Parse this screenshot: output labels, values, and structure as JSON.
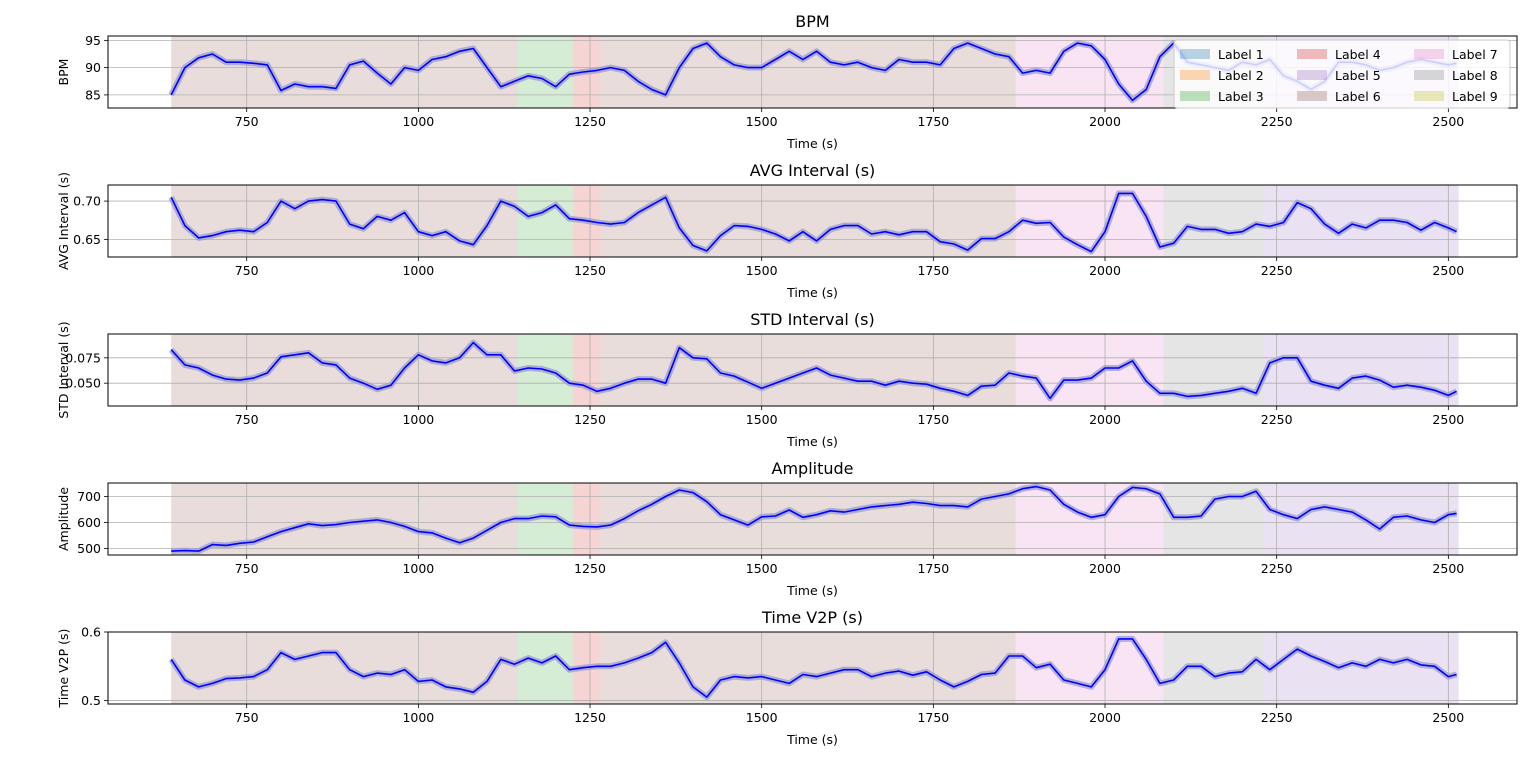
{
  "chart_data": [
    {
      "type": "line",
      "title": "BPM",
      "xlabel": "Time (s)",
      "ylabel": "BPM",
      "xlim": [
        548,
        2600
      ],
      "ylim": [
        82.6,
        95.8
      ],
      "xticks": [
        750,
        1000,
        1250,
        1500,
        1750,
        2000,
        2250,
        2500
      ],
      "yticks": [
        85,
        90,
        95
      ],
      "grid": true,
      "legend": "top-right",
      "x": [
        640,
        660,
        680,
        700,
        720,
        740,
        760,
        780,
        800,
        820,
        840,
        860,
        880,
        900,
        920,
        940,
        960,
        980,
        1000,
        1020,
        1040,
        1060,
        1080,
        1100,
        1120,
        1140,
        1160,
        1180,
        1200,
        1220,
        1240,
        1260,
        1280,
        1300,
        1320,
        1340,
        1360,
        1380,
        1400,
        1420,
        1440,
        1460,
        1480,
        1500,
        1520,
        1540,
        1560,
        1580,
        1600,
        1620,
        1640,
        1660,
        1680,
        1700,
        1720,
        1740,
        1760,
        1780,
        1800,
        1820,
        1840,
        1860,
        1880,
        1900,
        1920,
        1940,
        1960,
        1980,
        2000,
        2020,
        2040,
        2060,
        2080,
        2100,
        2120,
        2140,
        2160,
        2180,
        2200,
        2220,
        2240,
        2260,
        2280,
        2300,
        2320,
        2340,
        2360,
        2380,
        2400,
        2420,
        2440,
        2460,
        2480,
        2500,
        2512
      ],
      "series": [
        {
          "values": [
            85.0,
            90.0,
            91.8,
            92.5,
            91.0,
            91.0,
            90.8,
            90.5,
            85.8,
            87.0,
            86.5,
            86.5,
            86.2,
            90.5,
            91.2,
            89.0,
            87.0,
            90.0,
            89.5,
            91.5,
            92.0,
            93.0,
            93.5,
            90.0,
            86.5,
            87.5,
            88.5,
            88.0,
            86.5,
            88.8,
            89.2,
            89.5,
            90.0,
            89.5,
            87.5,
            86.0,
            85.0,
            90.0,
            93.5,
            94.5,
            92.0,
            90.5,
            90.0,
            90.0,
            91.5,
            93.0,
            91.5,
            93.0,
            91.0,
            90.5,
            91.0,
            90.0,
            89.5,
            91.5,
            91.0,
            91.0,
            90.5,
            93.5,
            94.5,
            93.5,
            92.5,
            92.0,
            89.0,
            89.5,
            89.0,
            93.0,
            94.5,
            94.0,
            91.5,
            87.0,
            84.0,
            86.0,
            92.0,
            94.5,
            91.0,
            90.5,
            90.0,
            89.5,
            91.0,
            90.5,
            91.5,
            88.5,
            87.5,
            86.0,
            87.5,
            91.0,
            91.0,
            90.5,
            89.5,
            90.0,
            91.0,
            91.5,
            91.0,
            90.5,
            90.8
          ]
        }
      ]
    },
    {
      "type": "line",
      "title": "AVG Interval (s)",
      "xlabel": "Time (s)",
      "ylabel": "AVG Interval (s)",
      "xlim": [
        548,
        2600
      ],
      "ylim": [
        0.627,
        0.721
      ],
      "xticks": [
        750,
        1000,
        1250,
        1500,
        1750,
        2000,
        2250,
        2500
      ],
      "yticks": [
        0.65,
        0.7
      ],
      "grid": true,
      "x": [
        640,
        660,
        680,
        700,
        720,
        740,
        760,
        780,
        800,
        820,
        840,
        860,
        880,
        900,
        920,
        940,
        960,
        980,
        1000,
        1020,
        1040,
        1060,
        1080,
        1100,
        1120,
        1140,
        1160,
        1180,
        1200,
        1220,
        1240,
        1260,
        1280,
        1300,
        1320,
        1340,
        1360,
        1380,
        1400,
        1420,
        1440,
        1460,
        1480,
        1500,
        1520,
        1540,
        1560,
        1580,
        1600,
        1620,
        1640,
        1660,
        1680,
        1700,
        1720,
        1740,
        1760,
        1780,
        1800,
        1820,
        1840,
        1860,
        1880,
        1900,
        1920,
        1940,
        1960,
        1980,
        2000,
        2020,
        2040,
        2060,
        2080,
        2100,
        2120,
        2140,
        2160,
        2180,
        2200,
        2220,
        2240,
        2260,
        2280,
        2300,
        2320,
        2340,
        2360,
        2380,
        2400,
        2420,
        2440,
        2460,
        2480,
        2500,
        2512
      ],
      "series": [
        {
          "values": [
            0.705,
            0.668,
            0.652,
            0.655,
            0.66,
            0.662,
            0.66,
            0.672,
            0.7,
            0.69,
            0.7,
            0.702,
            0.7,
            0.67,
            0.664,
            0.68,
            0.675,
            0.685,
            0.66,
            0.655,
            0.66,
            0.648,
            0.643,
            0.668,
            0.7,
            0.693,
            0.68,
            0.685,
            0.695,
            0.677,
            0.675,
            0.672,
            0.67,
            0.672,
            0.685,
            0.695,
            0.705,
            0.665,
            0.642,
            0.635,
            0.655,
            0.668,
            0.667,
            0.663,
            0.657,
            0.648,
            0.66,
            0.648,
            0.663,
            0.668,
            0.668,
            0.657,
            0.66,
            0.656,
            0.66,
            0.66,
            0.647,
            0.644,
            0.636,
            0.651,
            0.651,
            0.66,
            0.675,
            0.671,
            0.672,
            0.653,
            0.643,
            0.634,
            0.66,
            0.71,
            0.71,
            0.68,
            0.64,
            0.645,
            0.667,
            0.663,
            0.663,
            0.658,
            0.66,
            0.67,
            0.667,
            0.672,
            0.698,
            0.69,
            0.67,
            0.658,
            0.67,
            0.665,
            0.675,
            0.675,
            0.672,
            0.662,
            0.672,
            0.665,
            0.66
          ]
        }
      ]
    },
    {
      "type": "line",
      "title": "STD Interval (s)",
      "xlabel": "Time (s)",
      "ylabel": "STD Interval (s)",
      "xlim": [
        548,
        2600
      ],
      "ylim": [
        0.0275,
        0.0985
      ],
      "xticks": [
        750,
        1000,
        1250,
        1500,
        1750,
        2000,
        2250,
        2500
      ],
      "yticks": [
        0.05,
        0.075
      ],
      "grid": true,
      "x": [
        640,
        660,
        680,
        700,
        720,
        740,
        760,
        780,
        800,
        820,
        840,
        860,
        880,
        900,
        920,
        940,
        960,
        980,
        1000,
        1020,
        1040,
        1060,
        1080,
        1100,
        1120,
        1140,
        1160,
        1180,
        1200,
        1220,
        1240,
        1260,
        1280,
        1300,
        1320,
        1340,
        1360,
        1380,
        1400,
        1420,
        1440,
        1460,
        1480,
        1500,
        1520,
        1540,
        1560,
        1580,
        1600,
        1620,
        1640,
        1660,
        1680,
        1700,
        1720,
        1740,
        1760,
        1780,
        1800,
        1820,
        1840,
        1860,
        1880,
        1900,
        1920,
        1940,
        1960,
        1980,
        2000,
        2020,
        2040,
        2060,
        2080,
        2100,
        2120,
        2140,
        2160,
        2180,
        2200,
        2220,
        2240,
        2260,
        2280,
        2300,
        2320,
        2340,
        2360,
        2380,
        2400,
        2420,
        2440,
        2460,
        2480,
        2500,
        2512
      ],
      "series": [
        {
          "values": [
            0.083,
            0.068,
            0.065,
            0.058,
            0.054,
            0.053,
            0.055,
            0.06,
            0.076,
            0.078,
            0.08,
            0.07,
            0.068,
            0.055,
            0.05,
            0.044,
            0.048,
            0.065,
            0.078,
            0.072,
            0.07,
            0.075,
            0.09,
            0.078,
            0.078,
            0.062,
            0.065,
            0.064,
            0.06,
            0.05,
            0.048,
            0.042,
            0.045,
            0.05,
            0.054,
            0.054,
            0.05,
            0.085,
            0.075,
            0.074,
            0.06,
            0.057,
            0.051,
            0.045,
            0.05,
            0.055,
            0.06,
            0.065,
            0.058,
            0.055,
            0.052,
            0.052,
            0.048,
            0.052,
            0.05,
            0.049,
            0.045,
            0.042,
            0.038,
            0.047,
            0.048,
            0.06,
            0.057,
            0.055,
            0.035,
            0.053,
            0.053,
            0.055,
            0.065,
            0.065,
            0.072,
            0.052,
            0.04,
            0.04,
            0.037,
            0.038,
            0.04,
            0.042,
            0.045,
            0.04,
            0.07,
            0.075,
            0.075,
            0.052,
            0.048,
            0.045,
            0.055,
            0.057,
            0.053,
            0.046,
            0.048,
            0.046,
            0.043,
            0.038,
            0.042
          ]
        }
      ]
    },
    {
      "type": "line",
      "title": "Amplitude",
      "xlabel": "Time (s)",
      "ylabel": "Amplitude",
      "xlim": [
        548,
        2600
      ],
      "ylim": [
        475,
        752
      ],
      "xticks": [
        750,
        1000,
        1250,
        1500,
        1750,
        2000,
        2250,
        2500
      ],
      "yticks": [
        500,
        600,
        700
      ],
      "grid": true,
      "x": [
        640,
        660,
        680,
        700,
        720,
        740,
        760,
        780,
        800,
        820,
        840,
        860,
        880,
        900,
        920,
        940,
        960,
        980,
        1000,
        1020,
        1040,
        1060,
        1080,
        1100,
        1120,
        1140,
        1160,
        1180,
        1200,
        1220,
        1240,
        1260,
        1280,
        1300,
        1320,
        1340,
        1360,
        1380,
        1400,
        1420,
        1440,
        1460,
        1480,
        1500,
        1520,
        1540,
        1560,
        1580,
        1600,
        1620,
        1640,
        1660,
        1680,
        1700,
        1720,
        1740,
        1760,
        1780,
        1800,
        1820,
        1840,
        1860,
        1880,
        1900,
        1920,
        1940,
        1960,
        1980,
        2000,
        2020,
        2040,
        2060,
        2080,
        2100,
        2120,
        2140,
        2160,
        2180,
        2200,
        2220,
        2240,
        2260,
        2280,
        2300,
        2320,
        2340,
        2360,
        2380,
        2400,
        2420,
        2440,
        2460,
        2480,
        2500,
        2512
      ],
      "series": [
        {
          "values": [
            490,
            492,
            490,
            515,
            512,
            520,
            525,
            545,
            565,
            580,
            595,
            588,
            592,
            600,
            605,
            610,
            600,
            585,
            565,
            560,
            540,
            522,
            540,
            570,
            600,
            615,
            615,
            625,
            622,
            590,
            585,
            583,
            590,
            615,
            645,
            670,
            700,
            725,
            715,
            680,
            630,
            610,
            590,
            622,
            625,
            648,
            620,
            630,
            645,
            640,
            650,
            660,
            665,
            670,
            678,
            673,
            665,
            665,
            660,
            690,
            700,
            710,
            730,
            738,
            725,
            670,
            640,
            620,
            630,
            700,
            735,
            730,
            710,
            620,
            620,
            625,
            690,
            700,
            700,
            720,
            650,
            630,
            615,
            650,
            660,
            650,
            640,
            610,
            575,
            620,
            625,
            610,
            600,
            630,
            635
          ]
        }
      ]
    },
    {
      "type": "line",
      "title": "Time V2P (s)",
      "xlabel": "Time (s)",
      "ylabel": "Time V2P (s)",
      "xlim": [
        548,
        2600
      ],
      "ylim": [
        0.495,
        0.6
      ],
      "xticks": [
        750,
        1000,
        1250,
        1500,
        1750,
        2000,
        2250,
        2500
      ],
      "yticks": [
        0.5,
        0.6
      ],
      "grid": true,
      "x": [
        640,
        660,
        680,
        700,
        720,
        740,
        760,
        780,
        800,
        820,
        840,
        860,
        880,
        900,
        920,
        940,
        960,
        980,
        1000,
        1020,
        1040,
        1060,
        1080,
        1100,
        1120,
        1140,
        1160,
        1180,
        1200,
        1220,
        1240,
        1260,
        1280,
        1300,
        1320,
        1340,
        1360,
        1380,
        1400,
        1420,
        1440,
        1460,
        1480,
        1500,
        1520,
        1540,
        1560,
        1580,
        1600,
        1620,
        1640,
        1660,
        1680,
        1700,
        1720,
        1740,
        1760,
        1780,
        1800,
        1820,
        1840,
        1860,
        1880,
        1900,
        1920,
        1940,
        1960,
        1980,
        2000,
        2020,
        2040,
        2060,
        2080,
        2100,
        2120,
        2140,
        2160,
        2180,
        2200,
        2220,
        2240,
        2260,
        2280,
        2300,
        2320,
        2340,
        2360,
        2380,
        2400,
        2420,
        2440,
        2460,
        2480,
        2500,
        2512
      ],
      "series": [
        {
          "values": [
            0.56,
            0.53,
            0.52,
            0.525,
            0.532,
            0.533,
            0.535,
            0.545,
            0.57,
            0.56,
            0.565,
            0.57,
            0.57,
            0.545,
            0.535,
            0.54,
            0.538,
            0.545,
            0.528,
            0.53,
            0.52,
            0.517,
            0.512,
            0.528,
            0.56,
            0.553,
            0.562,
            0.555,
            0.565,
            0.545,
            0.548,
            0.55,
            0.55,
            0.555,
            0.562,
            0.57,
            0.585,
            0.555,
            0.52,
            0.505,
            0.53,
            0.535,
            0.533,
            0.535,
            0.53,
            0.525,
            0.538,
            0.535,
            0.54,
            0.545,
            0.545,
            0.535,
            0.54,
            0.543,
            0.537,
            0.542,
            0.53,
            0.52,
            0.528,
            0.538,
            0.54,
            0.565,
            0.565,
            0.548,
            0.553,
            0.53,
            0.525,
            0.52,
            0.545,
            0.59,
            0.59,
            0.56,
            0.525,
            0.53,
            0.55,
            0.55,
            0.535,
            0.54,
            0.542,
            0.56,
            0.545,
            0.56,
            0.575,
            0.565,
            0.557,
            0.548,
            0.555,
            0.55,
            0.56,
            0.555,
            0.56,
            0.552,
            0.55,
            0.535,
            0.538
          ]
        }
      ]
    }
  ],
  "regions": [
    {
      "start": 640,
      "end": 1145,
      "label": 6
    },
    {
      "start": 1145,
      "end": 1225,
      "label": 3
    },
    {
      "start": 1225,
      "end": 1265,
      "label": 4
    },
    {
      "start": 1265,
      "end": 1870,
      "label": 6
    },
    {
      "start": 1870,
      "end": 2085,
      "label": 7
    },
    {
      "start": 2085,
      "end": 2230,
      "label": 8
    },
    {
      "start": 2230,
      "end": 2515,
      "label": 5
    }
  ],
  "legend": {
    "entries": [
      {
        "label": "Label 1",
        "color": "#1f77b4"
      },
      {
        "label": "Label 2",
        "color": "#ff7f0e"
      },
      {
        "label": "Label 3",
        "color": "#2ca02c"
      },
      {
        "label": "Label 4",
        "color": "#d62728"
      },
      {
        "label": "Label 5",
        "color": "#9467bd"
      },
      {
        "label": "Label 6",
        "color": "#8c564b"
      },
      {
        "label": "Label 7",
        "color": "#e377c2"
      },
      {
        "label": "Label 8",
        "color": "#7f7f7f"
      },
      {
        "label": "Label 9",
        "color": "#bcbd22"
      }
    ]
  },
  "colors": {
    "line": "#0000ff",
    "halo": "#9b9bd0",
    "grid": "#b0b0b0"
  }
}
